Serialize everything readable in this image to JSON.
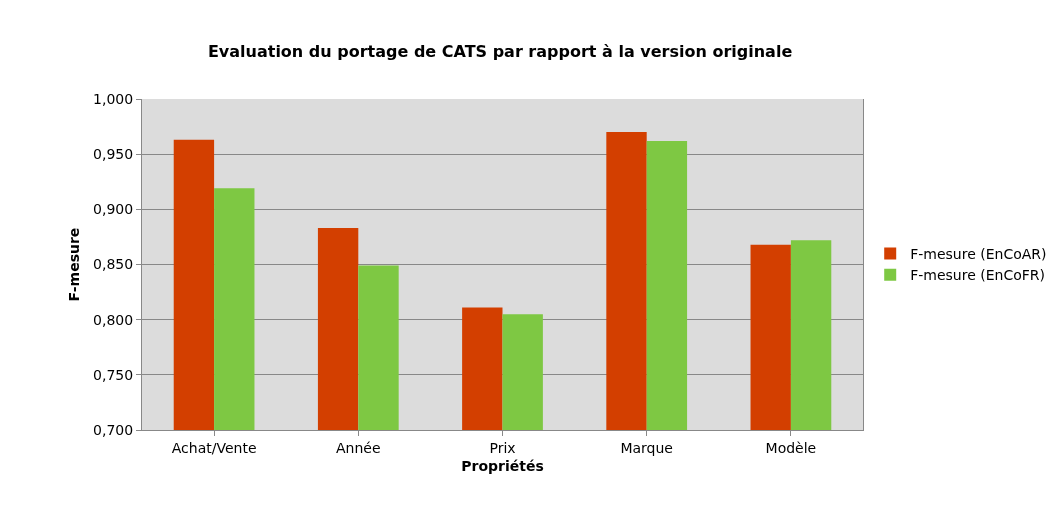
{
  "chart_data": {
    "type": "bar",
    "title": "Evaluation du portage de CATS par rapport à la version originale",
    "xlabel": "Propriétés",
    "ylabel": "F-mesure",
    "categories": [
      "Achat/Vente",
      "Année",
      "Prix",
      "Marque",
      "Modèle"
    ],
    "series": [
      {
        "name": "F-mesure (EnCoAR)",
        "color": "#d33f00",
        "values": [
          0.963,
          0.883,
          0.811,
          0.97,
          0.868
        ]
      },
      {
        "name": "F-mesure (EnCoFR)",
        "color": "#7ec843",
        "values": [
          0.919,
          0.849,
          0.805,
          0.962,
          0.872
        ]
      }
    ],
    "ylim": [
      0.7,
      1.0
    ],
    "yticks": [
      {
        "value": 0.7,
        "label": "0,700"
      },
      {
        "value": 0.75,
        "label": "0,750"
      },
      {
        "value": 0.8,
        "label": "0,800"
      },
      {
        "value": 0.85,
        "label": "0,850"
      },
      {
        "value": 0.9,
        "label": "0,900"
      },
      {
        "value": 0.95,
        "label": "0,950"
      },
      {
        "value": 1.0,
        "label": "1,000"
      }
    ],
    "grid": "y",
    "legend": "right"
  }
}
